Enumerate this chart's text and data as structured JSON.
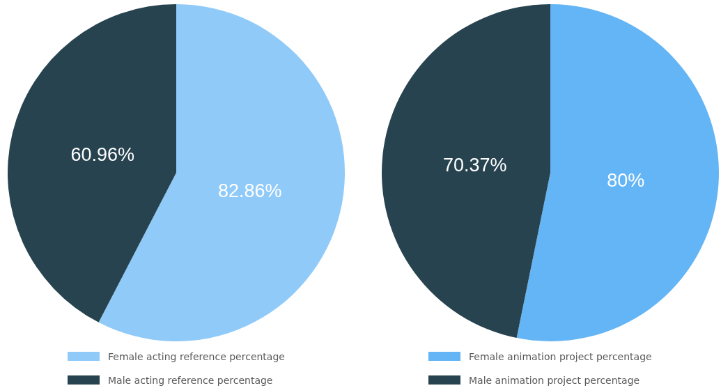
{
  "chart_data": [
    {
      "type": "pie",
      "categories": [
        "Female acting  reference percentage",
        "Male acting  reference percentage"
      ],
      "values": [
        82.86,
        60.96
      ],
      "colors": [
        "#90caf9",
        "#26434f"
      ],
      "value_labels": [
        "82.86%",
        "60.96%"
      ],
      "legend": "bottom"
    },
    {
      "type": "pie",
      "categories": [
        "Female animation project percentage",
        "Male animation project percentage"
      ],
      "values": [
        80,
        70.37
      ],
      "colors": [
        "#64b5f6",
        "#26434f"
      ],
      "value_labels": [
        "80%",
        "70.37%"
      ],
      "legend": "bottom"
    }
  ]
}
